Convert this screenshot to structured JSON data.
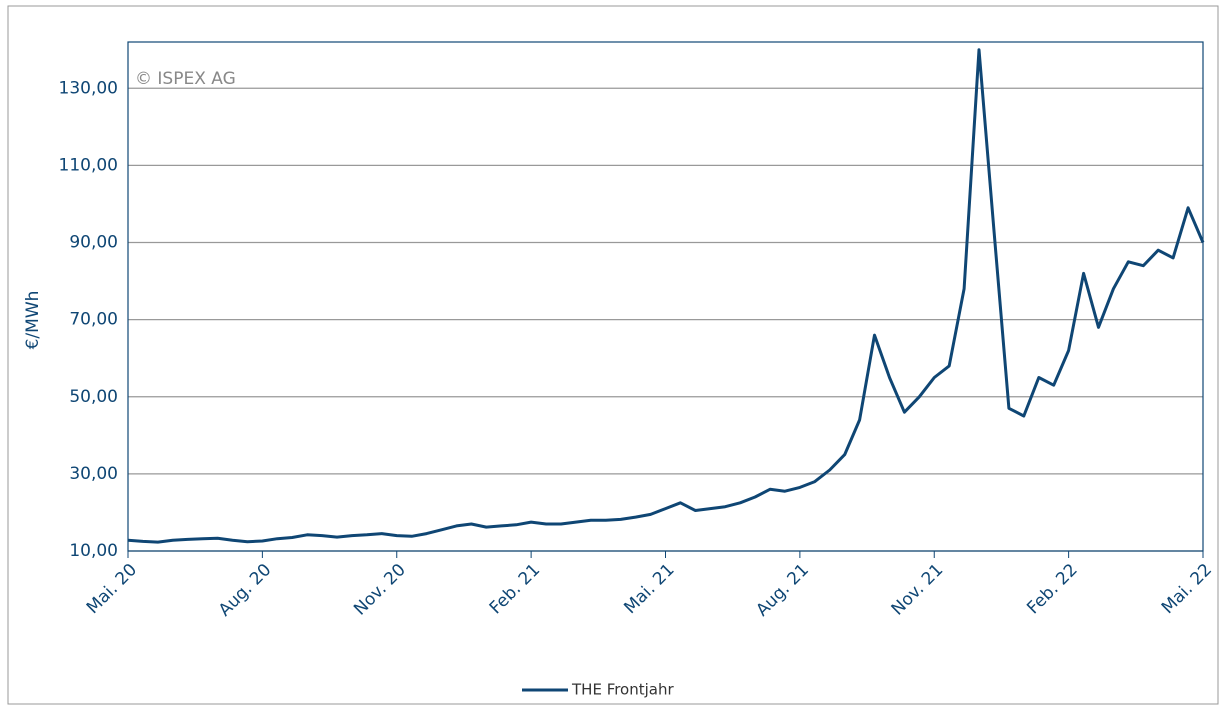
{
  "chart_data": {
    "type": "line",
    "watermark": "© ISPEX AG",
    "ylabel": "€/MWh",
    "series": [
      {
        "name": "THE Frontjahr",
        "color": "#0f4674",
        "values": [
          12.8,
          12.5,
          12.3,
          12.8,
          13,
          13.2,
          13.3,
          12.8,
          12.4,
          12.6,
          13.2,
          13.5,
          14.2,
          14,
          13.6,
          14,
          14.2,
          14.5,
          14,
          13.8,
          14.5,
          15.5,
          16.5,
          17,
          16.2,
          16.5,
          16.8,
          17.5,
          17,
          17,
          17.5,
          18,
          18,
          18.2,
          18.8,
          19.5,
          21,
          22.5,
          20.5,
          21,
          21.5,
          22.5,
          24,
          26,
          25.5,
          26.5,
          28,
          31,
          35,
          44,
          66,
          55,
          46,
          50,
          55,
          58,
          78,
          140,
          93,
          47,
          45,
          55,
          53,
          62,
          82,
          68,
          78,
          85,
          84,
          88,
          86,
          99,
          90
        ]
      }
    ],
    "xlim": [
      0,
      72
    ],
    "xticks": [
      {
        "value": 0,
        "label": "Mai. 20"
      },
      {
        "value": 9,
        "label": "Aug. 20"
      },
      {
        "value": 18,
        "label": "Nov. 20"
      },
      {
        "value": 27,
        "label": "Feb. 21"
      },
      {
        "value": 36,
        "label": "Mai. 21"
      },
      {
        "value": 45,
        "label": "Aug. 21"
      },
      {
        "value": 54,
        "label": "Nov. 21"
      },
      {
        "value": 63,
        "label": "Feb. 22"
      },
      {
        "value": 72,
        "label": "Mai. 22"
      }
    ],
    "ylim": [
      10,
      142
    ],
    "yticks": [
      {
        "value": 10,
        "label": "10,00"
      },
      {
        "value": 30,
        "label": "30,00"
      },
      {
        "value": 50,
        "label": "50,00"
      },
      {
        "value": 70,
        "label": "70,00"
      },
      {
        "value": 90,
        "label": "90,00"
      },
      {
        "value": 110,
        "label": "110,00"
      },
      {
        "value": 130,
        "label": "130,00"
      }
    ],
    "grid": true
  }
}
